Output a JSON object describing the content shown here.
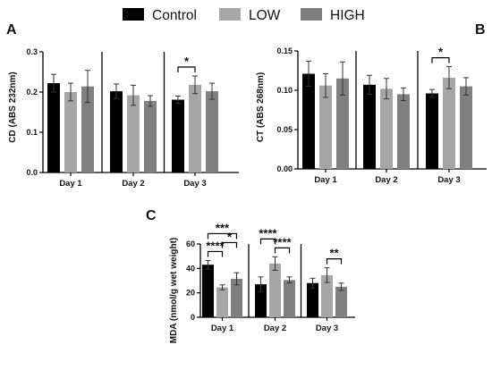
{
  "legend": [
    {
      "label": "Control",
      "color": "#000000"
    },
    {
      "label": "LOW",
      "color": "#a6a6a6"
    },
    {
      "label": "HIGH",
      "color": "#808080"
    }
  ],
  "chart_data": [
    {
      "panel": "A",
      "type": "bar",
      "categories": [
        "Day 1",
        "Day 2",
        "Day 3"
      ],
      "series": [
        {
          "name": "Control",
          "values": [
            0.222,
            0.202,
            0.181
          ],
          "errors": [
            0.022,
            0.018,
            0.009
          ]
        },
        {
          "name": "LOW",
          "values": [
            0.2,
            0.192,
            0.218
          ],
          "errors": [
            0.022,
            0.025,
            0.022
          ]
        },
        {
          "name": "HIGH",
          "values": [
            0.214,
            0.178,
            0.202
          ],
          "errors": [
            0.04,
            0.013,
            0.02
          ]
        }
      ],
      "ylabel": "CD (ABS 232nm)",
      "ylim": [
        0,
        0.3
      ],
      "yticks": [
        "0.0",
        "0.1",
        "0.2",
        "0.3"
      ],
      "significance": [
        {
          "day": 2,
          "from": "Control",
          "to": "LOW",
          "label": "*",
          "level": 0
        }
      ]
    },
    {
      "panel": "B",
      "type": "bar",
      "categories": [
        "Day 1",
        "Day 2",
        "Day 3"
      ],
      "series": [
        {
          "name": "Control",
          "values": [
            0.121,
            0.107,
            0.096
          ],
          "errors": [
            0.016,
            0.012,
            0.005
          ]
        },
        {
          "name": "LOW",
          "values": [
            0.106,
            0.102,
            0.116
          ],
          "errors": [
            0.015,
            0.013,
            0.014
          ]
        },
        {
          "name": "HIGH",
          "values": [
            0.115,
            0.095,
            0.105
          ],
          "errors": [
            0.021,
            0.008,
            0.011
          ]
        }
      ],
      "ylabel": "CT (ABS 268nm)",
      "ylim": [
        0,
        0.15
      ],
      "yticks": [
        "0.00",
        "0.05",
        "0.10",
        "0.15"
      ],
      "significance": [
        {
          "day": 2,
          "from": "Control",
          "to": "LOW",
          "label": "*",
          "level": 0
        }
      ]
    },
    {
      "panel": "C",
      "type": "bar",
      "categories": [
        "Day 1",
        "Day 2",
        "Day 3"
      ],
      "series": [
        {
          "name": "Control",
          "values": [
            43,
            27,
            28
          ],
          "errors": [
            3.5,
            6,
            4
          ]
        },
        {
          "name": "LOW",
          "values": [
            24.5,
            44,
            34.5
          ],
          "errors": [
            2,
            5.5,
            6
          ]
        },
        {
          "name": "HIGH",
          "values": [
            31.5,
            30.5,
            25
          ],
          "errors": [
            5,
            2.5,
            3
          ]
        }
      ],
      "ylabel": "MDA (nmol/g wet weight)",
      "ylim": [
        0,
        60
      ],
      "yticks": [
        "0",
        "20",
        "40",
        "60"
      ],
      "significance": [
        {
          "day": 0,
          "from": "Control",
          "to": "LOW",
          "label": "****",
          "level": 0
        },
        {
          "day": 0,
          "from": "LOW",
          "to": "HIGH",
          "label": "*",
          "level": 1
        },
        {
          "day": 0,
          "from": "Control",
          "to": "HIGH",
          "label": "***",
          "level": 2
        },
        {
          "day": 1,
          "from": "Control",
          "to": "LOW",
          "label": "****",
          "level": 1
        },
        {
          "day": 1,
          "from": "LOW",
          "to": "HIGH",
          "label": "****",
          "level": 0
        },
        {
          "day": 2,
          "from": "LOW",
          "to": "HIGH",
          "label": "**",
          "level": 0
        }
      ]
    }
  ]
}
